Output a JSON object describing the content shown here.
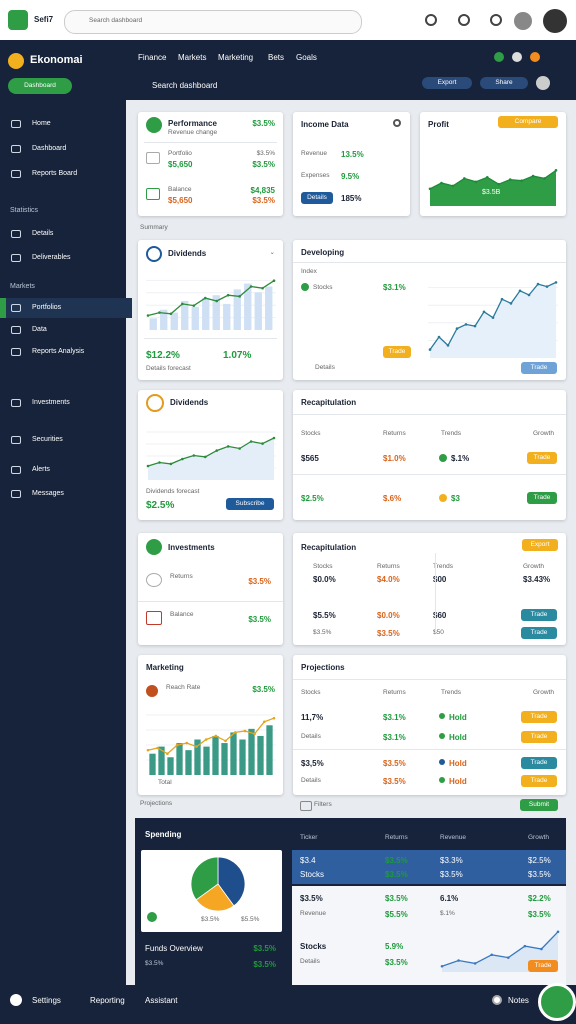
{
  "topbar": {
    "brand": "Sefi7",
    "search": "Search dashboard"
  },
  "sidebar": {
    "brand": "Ekonomai",
    "button": "Dashboard",
    "items": [
      "Home",
      "Dashboard",
      "Reports Board",
      "Statistics",
      "Details",
      "Deliverables",
      "Markets",
      "Portfolios",
      "Data",
      "Reports Analysis",
      "Investments",
      "Securities",
      "Alerts",
      "Messages"
    ]
  },
  "nav": {
    "tabs": [
      "Finance",
      "Markets",
      "Marketing",
      "Bets",
      "Goals"
    ],
    "search": "Search dashboard",
    "buttons": [
      "Export",
      "Share"
    ]
  },
  "summary_label": "Summary",
  "performance": {
    "title": "Performance",
    "value": "$3.5%",
    "sub": "Revenue change",
    "rows": [
      {
        "label": "Portfolio",
        "value": "$5,650",
        "change": "$3.5%",
        "delta": "$3.5%"
      },
      {
        "label": "Balance",
        "value": "$5,650",
        "change": "$4,835",
        "delta": "$3.5%"
      }
    ]
  },
  "income": {
    "title": "Income Data",
    "rows": [
      {
        "label": "Revenue",
        "value": "13.5%"
      },
      {
        "label": "Expenses",
        "value": "9.5%"
      }
    ],
    "button": "Details",
    "total": "185%"
  },
  "profit": {
    "title": "Profit",
    "button": "Compare",
    "label": "$3.5B",
    "chart": {
      "values": [
        30,
        40,
        35,
        48,
        42,
        50,
        38,
        46,
        44,
        52,
        48,
        62
      ],
      "ylim": [
        0,
        80
      ]
    }
  },
  "dividends": {
    "title": "Dividends",
    "chart": {
      "bars": [
        20,
        35,
        30,
        50,
        40,
        55,
        60,
        45,
        70,
        80,
        65,
        75
      ],
      "line": [
        25,
        30,
        28,
        45,
        42,
        55,
        50,
        60,
        58,
        75,
        72,
        85
      ],
      "ylim": [
        0,
        100
      ]
    },
    "value": "$12.2%",
    "change": "1.07%",
    "note": "Details forecast"
  },
  "developing": {
    "title": "Developing",
    "label": "Index",
    "item": "Stocks",
    "value": "$3.1%",
    "chart": {
      "values": [
        10,
        25,
        15,
        35,
        40,
        38,
        55,
        48,
        70,
        65,
        80,
        75,
        88,
        85,
        90
      ],
      "ylim": [
        0,
        100
      ]
    },
    "buttons": [
      "Trade",
      "Trade"
    ],
    "note": "Details"
  },
  "dividends_forecast": {
    "title": "Dividends",
    "chart": {
      "values": [
        20,
        25,
        23,
        30,
        35,
        33,
        42,
        48,
        45,
        55,
        52,
        60
      ],
      "ylim": [
        0,
        80
      ]
    },
    "note": "Dividends forecast",
    "value": "$2.5%",
    "button": "Subscribe"
  },
  "recap": {
    "title": "Recapitulation",
    "header": [
      "Stocks",
      "Returns",
      "Trends",
      "Growth"
    ],
    "rows": [
      [
        "$565",
        "$1.0%",
        "$.1%",
        "Trade"
      ],
      [
        "$2.5%",
        "$.6%",
        "$3",
        "Trade"
      ]
    ]
  },
  "investments": {
    "title": "Investments",
    "rows": [
      {
        "label": "Returns",
        "value": "$3.5%"
      },
      {
        "label": "Balance",
        "value": "$3.5%"
      }
    ]
  },
  "recap2": {
    "title": "Recapitulation",
    "button": "Export",
    "header": [
      "Stocks",
      "Returns",
      "Trends",
      "Growth"
    ],
    "rows": [
      [
        "$0.0%",
        "$4.0%",
        "$00",
        "$3.43%"
      ],
      [
        "$5.5%",
        "$0.0%",
        "$60",
        "Trade"
      ],
      [
        "$3.5%",
        "$3.5%",
        "$50",
        "Trade"
      ]
    ]
  },
  "marketing": {
    "title": "Marketing",
    "label": "Reach Rate",
    "value": "$3.5%",
    "chart": {
      "bars": [
        30,
        40,
        25,
        45,
        35,
        50,
        40,
        55,
        45,
        60,
        50,
        65,
        55,
        70
      ],
      "line": [
        35,
        38,
        30,
        42,
        45,
        40,
        50,
        55,
        48,
        60,
        62,
        58,
        75,
        80
      ],
      "ylim": [
        0,
        100
      ]
    },
    "note": "Total"
  },
  "projections": {
    "title": "Projections",
    "header": [
      "Stocks",
      "Returns",
      "Trends",
      "Growth"
    ],
    "rows": [
      [
        "11,7%",
        "$3.1%",
        "Hold",
        "Trade"
      ],
      [
        "Details",
        "$3.1%",
        "Hold",
        "Trade"
      ],
      [
        "$3,5%",
        "$3.5%",
        "Hold",
        "Trade"
      ],
      [
        "Details",
        "$3.5%",
        "Hold",
        "Trade"
      ]
    ]
  },
  "footer_row": {
    "label": "Projections",
    "filter": "Filters",
    "button": "Submit"
  },
  "spending": {
    "title": "Spending",
    "pie": {
      "values": [
        40,
        25,
        35
      ],
      "colors": [
        "#1f4e8c",
        "#f5a623",
        "#2e9d45"
      ]
    },
    "labels": [
      "$3.5%",
      "$5.5%"
    ],
    "summary": [
      {
        "label": "Funds Overview",
        "value": "$3.5%"
      },
      {
        "label": "$3.5%",
        "value": "$3.5%"
      }
    ],
    "table": {
      "header": [
        "Ticker",
        "Returns",
        "Revenue",
        "Growth"
      ],
      "rows": [
        [
          "$3.4",
          "$3.5%",
          "$3.3%",
          "$2.5%"
        ],
        [
          "Stocks",
          "$3.5%",
          "$3.5%",
          "$3.5%"
        ],
        [
          "$3.5%",
          "$3.5%",
          "6.1%",
          "$2.2%"
        ],
        [
          "Revenue",
          "$5.5%",
          "$.1%",
          "$3.5%"
        ],
        [
          "Stocks",
          "5.9%"
        ],
        [
          "Details",
          "$3.5%"
        ]
      ]
    },
    "chart": {
      "values": [
        10,
        20,
        15,
        30,
        25,
        45,
        40,
        70
      ],
      "ylim": [
        0,
        80
      ]
    },
    "button": "Trade"
  },
  "bottombar": {
    "items": [
      "Settings",
      "Reporting",
      "Assistant"
    ],
    "notes": "Notes"
  }
}
